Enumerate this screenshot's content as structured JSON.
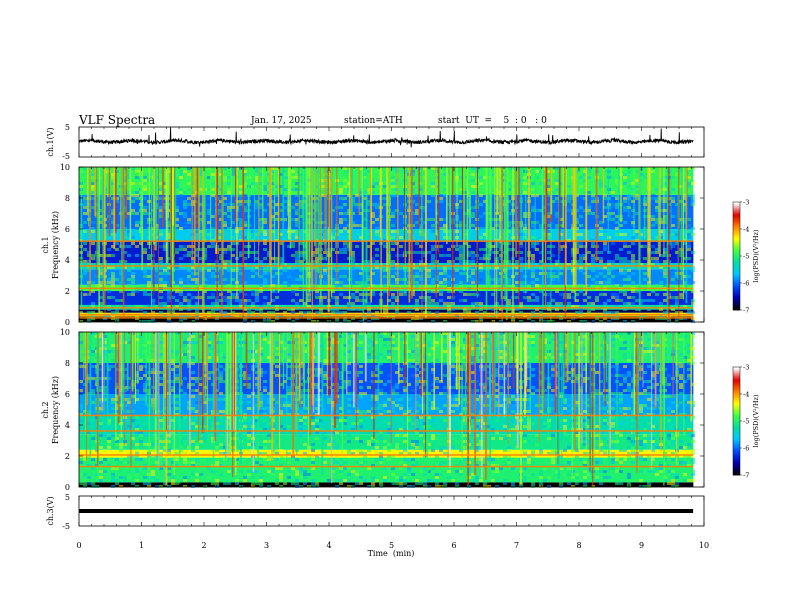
{
  "header": {
    "title": "VLF  Spectra",
    "date": "Jan. 17, 2025",
    "station": "station=ATH",
    "start_ut": "start  UT  =    5  : 0   : 0"
  },
  "colors": {
    "waveform": "#000000",
    "colormap": [
      "#000000",
      "#0000b4",
      "#0050ff",
      "#00c8ff",
      "#00e0a0",
      "#40ff40",
      "#ffff00",
      "#ff8000",
      "#e00000",
      "#ffffff"
    ]
  },
  "chart_data": [
    {
      "type": "line",
      "name": "ch1-waveform",
      "ylabel": "ch.1(V)",
      "yticks": [
        "5",
        "-5"
      ],
      "ylim": [
        -5,
        5
      ],
      "xlim": [
        0,
        10
      ],
      "grid": false,
      "description_values": {
        "baseline": 0.2,
        "noise_amplitude": 0.6,
        "data_end_min": 9.83
      }
    },
    {
      "type": "heatmap",
      "name": "ch1-spectrogram",
      "ylabel_line1": "ch.1",
      "ylabel_line2": "Frequency (kHz)",
      "yticks": [
        "0",
        "2",
        "4",
        "6",
        "8",
        "10"
      ],
      "ylim": [
        0,
        10
      ],
      "xlim": [
        0,
        10
      ],
      "colorbar": {
        "label": "log(PSD)(V²/Hz)",
        "ticks": [
          "-3",
          "-4",
          "-5",
          "-6",
          "-7"
        ],
        "range": [
          -7,
          -3
        ]
      },
      "bands_khz": [
        {
          "from": 0.0,
          "to": 0.35,
          "level": -7
        },
        {
          "from": 0.35,
          "to": 0.6,
          "level": -4.2
        },
        {
          "from": 0.6,
          "to": 0.8,
          "level": -6.8
        },
        {
          "from": 0.8,
          "to": 1.1,
          "level": -5.2
        },
        {
          "from": 1.1,
          "to": 2.0,
          "level": -6.3
        },
        {
          "from": 2.0,
          "to": 2.4,
          "level": -4.8
        },
        {
          "from": 2.4,
          "to": 3.4,
          "level": -5.9
        },
        {
          "from": 3.4,
          "to": 3.8,
          "level": -5.4
        },
        {
          "from": 3.8,
          "to": 5.2,
          "level": -6.4
        },
        {
          "from": 5.2,
          "to": 6.0,
          "level": -5.6
        },
        {
          "from": 6.0,
          "to": 8.2,
          "level": -6.0
        },
        {
          "from": 8.2,
          "to": 10.0,
          "level": -4.9
        }
      ],
      "lines_khz": [
        0.25,
        0.45,
        0.9,
        2.15,
        3.6,
        5.2
      ]
    },
    {
      "type": "heatmap",
      "name": "ch2-spectrogram",
      "ylabel_line1": "ch.2",
      "ylabel_line2": "Frequency (kHz)",
      "yticks": [
        "0",
        "2",
        "4",
        "6",
        "8",
        "10"
      ],
      "ylim": [
        0,
        10
      ],
      "xlim": [
        0,
        10
      ],
      "colorbar": {
        "label": "log(PSD)(V²/Hz)",
        "ticks": [
          "-3",
          "-4",
          "-5",
          "-6",
          "-7"
        ],
        "range": [
          -7,
          -3
        ]
      },
      "bands_khz": [
        {
          "from": 0.0,
          "to": 0.3,
          "level": -7
        },
        {
          "from": 0.3,
          "to": 1.9,
          "level": -5.0
        },
        {
          "from": 1.9,
          "to": 2.4,
          "level": -4.3
        },
        {
          "from": 2.4,
          "to": 3.4,
          "level": -5.1
        },
        {
          "from": 3.4,
          "to": 4.6,
          "level": -5.3
        },
        {
          "from": 4.6,
          "to": 6.0,
          "level": -5.8
        },
        {
          "from": 6.0,
          "to": 8.0,
          "level": -6.1
        },
        {
          "from": 8.0,
          "to": 10.0,
          "level": -5.0
        }
      ],
      "lines_khz": [
        2.05,
        3.6,
        4.6,
        1.3
      ]
    },
    {
      "type": "line",
      "name": "ch3-waveform",
      "ylabel": "ch.3(V)",
      "yticks": [
        "5",
        "-5"
      ],
      "ylim": [
        -5,
        5
      ],
      "xlim": [
        0,
        10
      ],
      "grid": false,
      "description_values": {
        "baseline": 0.0,
        "data_end_min": 9.83
      }
    }
  ],
  "x_axis": {
    "label": "Time  (min)",
    "ticks": [
      "0",
      "1",
      "2",
      "3",
      "4",
      "5",
      "6",
      "7",
      "8",
      "9",
      "10"
    ],
    "range": [
      0,
      10
    ]
  }
}
